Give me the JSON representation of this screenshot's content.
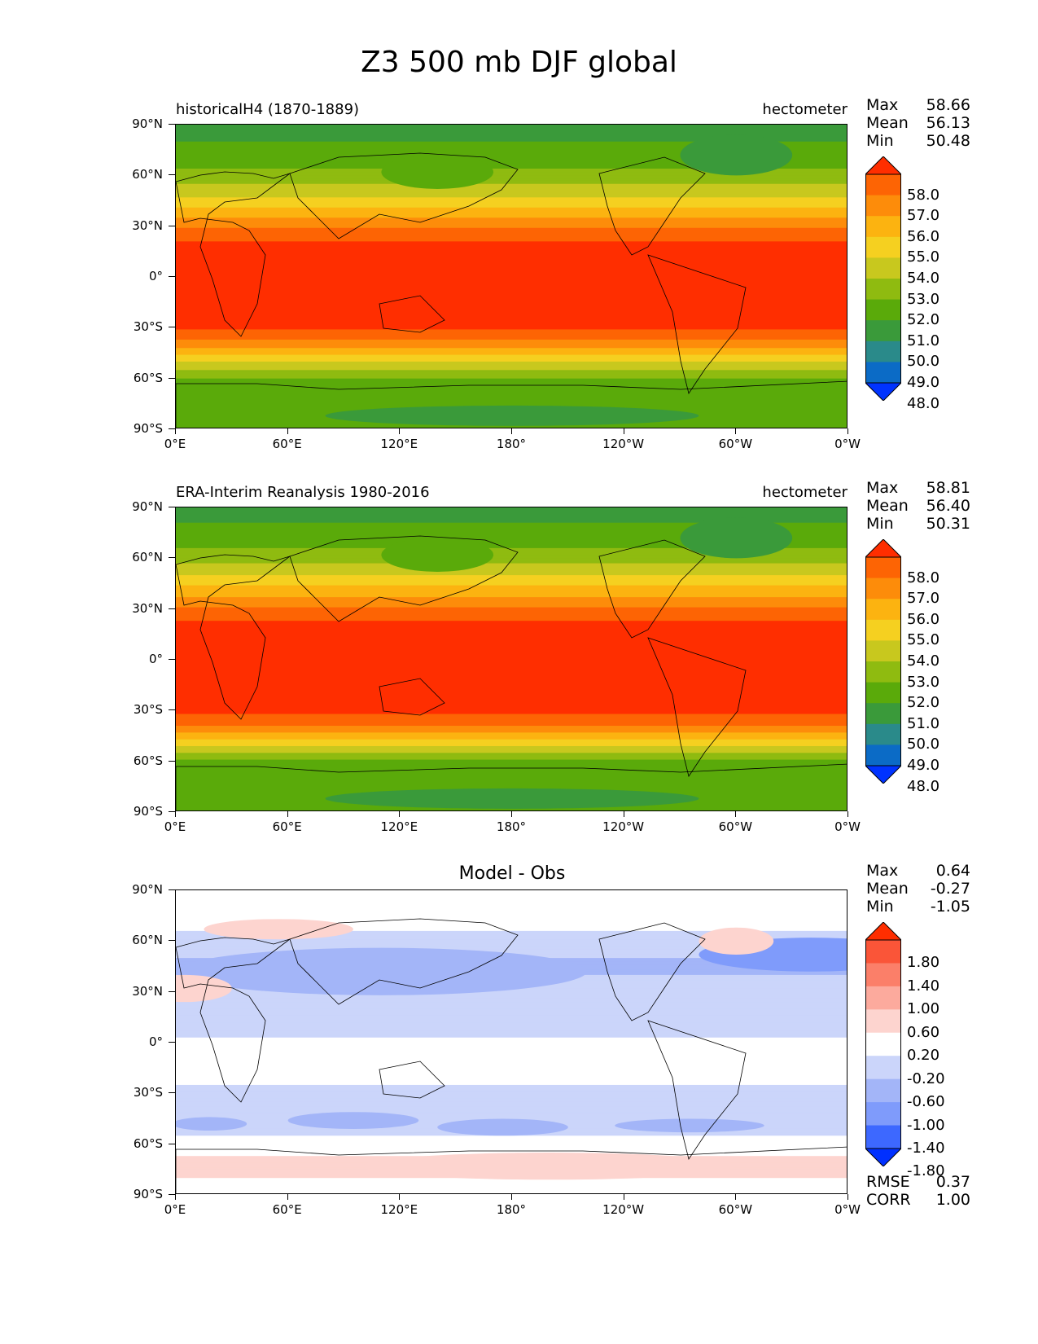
{
  "figure_title": "Z3 500 mb DJF global",
  "icons": [
    "colorbar-extend-up-arrow",
    "colorbar-extend-down-arrow"
  ],
  "axes": {
    "y_ticks": [
      "90°N",
      "60°N",
      "30°N",
      "0°",
      "30°S",
      "60°S",
      "90°S"
    ],
    "x_ticks": [
      "0°E",
      "60°E",
      "120°E",
      "180°",
      "120°W",
      "60°W",
      "0°W"
    ]
  },
  "panels": [
    {
      "title_left": "historicalH4 (1870-1889)",
      "title_right": "hectometer",
      "stats": [
        {
          "label": "Max",
          "value": "58.66"
        },
        {
          "label": "Mean",
          "value": "56.13"
        },
        {
          "label": "Min",
          "value": "50.48"
        }
      ]
    },
    {
      "title_left": "ERA-Interim Reanalysis 1980-2016",
      "title_right": "hectometer",
      "stats": [
        {
          "label": "Max",
          "value": "58.81"
        },
        {
          "label": "Mean",
          "value": "56.40"
        },
        {
          "label": "Min",
          "value": "50.31"
        }
      ]
    },
    {
      "title_center": "Model - Obs",
      "stats": [
        {
          "label": "Max",
          "value": "0.64"
        },
        {
          "label": "Mean",
          "value": "-0.27"
        },
        {
          "label": "Min",
          "value": "-1.05"
        }
      ],
      "metrics": [
        {
          "label": "RMSE",
          "value": "0.37"
        },
        {
          "label": "CORR",
          "value": "1.00"
        }
      ]
    }
  ],
  "colorbars": {
    "field": {
      "labels": [
        "58.0",
        "57.0",
        "56.0",
        "55.0",
        "54.0",
        "53.0",
        "52.0",
        "51.0",
        "50.0",
        "49.0",
        "48.0"
      ],
      "colors": [
        "#0033ff",
        "#0b6bc6",
        "#2a8a8a",
        "#3a9a3a",
        "#5aaa0a",
        "#8fbb10",
        "#c8c81e",
        "#f5d020",
        "#fcb310",
        "#fd8c0a",
        "#fd6404",
        "#ff2e00"
      ]
    },
    "diff": {
      "labels": [
        "1.80",
        "1.40",
        "1.00",
        "0.60",
        "0.20",
        "-0.20",
        "-0.60",
        "-1.00",
        "-1.40",
        "-1.80"
      ],
      "colors": [
        "#0030ff",
        "#3d68ff",
        "#7f9bfb",
        "#a3b5f8",
        "#cbd5fa",
        "#ffffff",
        "#fdd4cf",
        "#fcaa9d",
        "#fb7f69",
        "#fa5538",
        "#ff2e00"
      ]
    }
  },
  "chart_data": [
    {
      "type": "heatmap",
      "title": "historicalH4 (1870-1889)",
      "units": "hectometer",
      "variable": "Z3 500 mb DJF",
      "x_range": [
        0,
        360
      ],
      "y_range": [
        -90,
        90
      ],
      "levels": [
        48,
        49,
        50,
        51,
        52,
        53,
        54,
        55,
        56,
        57,
        58
      ],
      "zonal_profile": [
        {
          "lat": 90,
          "value": 50.6
        },
        {
          "lat": 75,
          "value": 51.2
        },
        {
          "lat": 60,
          "value": 52.3
        },
        {
          "lat": 50,
          "value": 53.6
        },
        {
          "lat": 40,
          "value": 55.2
        },
        {
          "lat": 30,
          "value": 56.8
        },
        {
          "lat": 20,
          "value": 58.2
        },
        {
          "lat": 0,
          "value": 58.5
        },
        {
          "lat": -20,
          "value": 58.5
        },
        {
          "lat": -30,
          "value": 58.2
        },
        {
          "lat": -40,
          "value": 56.5
        },
        {
          "lat": -50,
          "value": 54.0
        },
        {
          "lat": -60,
          "value": 52.0
        },
        {
          "lat": -75,
          "value": 51.3
        },
        {
          "lat": -90,
          "value": 51.2
        }
      ],
      "stats": {
        "max": 58.66,
        "mean": 56.13,
        "min": 50.48
      }
    },
    {
      "type": "heatmap",
      "title": "ERA-Interim Reanalysis 1980-2016",
      "units": "hectometer",
      "variable": "Z3 500 mb DJF",
      "x_range": [
        0,
        360
      ],
      "y_range": [
        -90,
        90
      ],
      "levels": [
        48,
        49,
        50,
        51,
        52,
        53,
        54,
        55,
        56,
        57,
        58
      ],
      "zonal_profile": [
        {
          "lat": 90,
          "value": 50.6
        },
        {
          "lat": 75,
          "value": 51.3
        },
        {
          "lat": 60,
          "value": 52.5
        },
        {
          "lat": 50,
          "value": 54.0
        },
        {
          "lat": 40,
          "value": 55.6
        },
        {
          "lat": 30,
          "value": 57.2
        },
        {
          "lat": 20,
          "value": 58.3
        },
        {
          "lat": 0,
          "value": 58.6
        },
        {
          "lat": -20,
          "value": 58.6
        },
        {
          "lat": -30,
          "value": 58.3
        },
        {
          "lat": -40,
          "value": 56.8
        },
        {
          "lat": -50,
          "value": 54.2
        },
        {
          "lat": -60,
          "value": 51.8
        },
        {
          "lat": -75,
          "value": 51.0
        },
        {
          "lat": -90,
          "value": 51.1
        }
      ],
      "stats": {
        "max": 58.81,
        "mean": 56.4,
        "min": 50.31
      }
    },
    {
      "type": "heatmap",
      "title": "Model - Obs",
      "units": "hectometer",
      "x_range": [
        0,
        360
      ],
      "y_range": [
        -90,
        90
      ],
      "levels": [
        -1.8,
        -1.4,
        -1.0,
        -0.6,
        -0.2,
        0.2,
        0.6,
        1.0,
        1.4,
        1.8
      ],
      "zonal_profile": [
        {
          "lat": 90,
          "value": 0.0
        },
        {
          "lat": 75,
          "value": 0.1
        },
        {
          "lat": 60,
          "value": -0.4
        },
        {
          "lat": 45,
          "value": -0.7
        },
        {
          "lat": 30,
          "value": -0.4
        },
        {
          "lat": 10,
          "value": -0.4
        },
        {
          "lat": 0,
          "value": -0.1
        },
        {
          "lat": -20,
          "value": -0.1
        },
        {
          "lat": -40,
          "value": -0.5
        },
        {
          "lat": -50,
          "value": -0.4
        },
        {
          "lat": -60,
          "value": 0.0
        },
        {
          "lat": -70,
          "value": 0.3
        },
        {
          "lat": -90,
          "value": 0.1
        }
      ],
      "stats": {
        "max": 0.64,
        "mean": -0.27,
        "min": -1.05,
        "rmse": 0.37,
        "corr": 1.0
      }
    }
  ]
}
